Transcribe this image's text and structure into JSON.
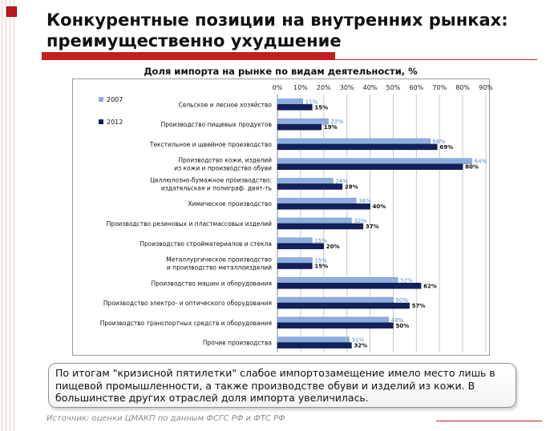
{
  "slide": {
    "title": "Конкурентные позиции на внутренних рынках: преимущественно ухудшение",
    "note": "По итогам \"кризисной пятилетки\" слабое импортозамещение имело место лишь в пищевой промышленности, а также производстве обуви и изделий из кожи. В большинстве других отраслей доля импорта увеличилась.",
    "source": "Источник: оценки ЦМАКП по данным ФСГС РФ и ФТС РФ",
    "accent_color": "#c41e1e"
  },
  "chart_data": {
    "type": "bar",
    "orientation": "horizontal",
    "title": "Доля импорта на рынке по видам деятельности, %",
    "xlim": [
      0,
      90
    ],
    "ticks": [
      "0%",
      "10%",
      "20%",
      "30%",
      "40%",
      "50%",
      "60%",
      "70%",
      "80%",
      "90%"
    ],
    "grid": true,
    "legend_position": "top-left",
    "categories": [
      "Сельское и лесное хозяйство",
      "Производство пищевых продуктов",
      "Текстильное и швейное производство",
      "Производство кожи, изделий из кожи и производство обуви",
      "Целлюлозно-бумажное производство; издательская и полиграф. деят-ть",
      "Химическое производство",
      "Производство резиновых и пластмассовых изделий",
      "Производство стройматериалов и стекла",
      "Металлургическое производство и производство металлоизделий",
      "Производство машин и оборудования",
      "Производство электро- и оптического оборудования",
      "Производство транспортных средств и оборудования",
      "Прочие производства"
    ],
    "series": [
      {
        "name": "2007",
        "color": "#8eaede",
        "label_color": "#4a8ed8",
        "values": [
          11,
          22,
          66,
          84,
          24,
          34,
          32,
          15,
          15,
          52,
          50,
          48,
          31
        ],
        "labels": [
          "11%",
          "22%",
          "66%",
          "84%",
          "24%",
          "34%",
          "32%",
          "15%",
          "15%",
          "52%",
          "50%",
          "48%",
          "31%"
        ]
      },
      {
        "name": "2012",
        "color": "#12205c",
        "label_color": "#111111",
        "values": [
          15,
          19,
          69,
          80,
          28,
          40,
          37,
          20,
          15,
          62,
          57,
          50,
          32
        ],
        "labels": [
          "15%",
          "19%",
          "69%",
          "80%",
          "28%",
          "40%",
          "37%",
          "20%",
          "15%",
          "62%",
          "57%",
          "50%",
          "32%"
        ]
      }
    ]
  }
}
